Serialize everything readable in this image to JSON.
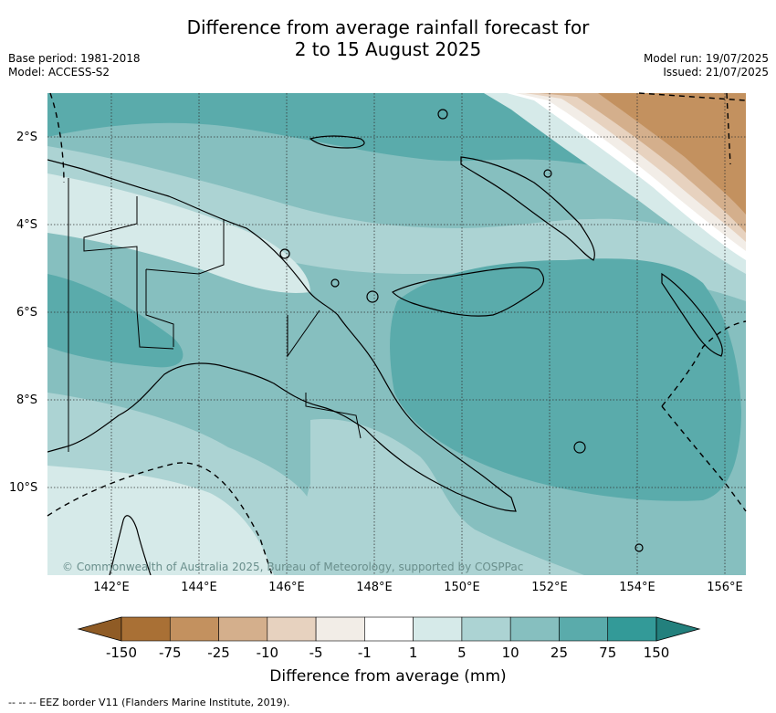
{
  "title_line1": "Difference from average rainfall forecast for",
  "title_line2": "2 to 15 August 2025",
  "base_period": "Base period: 1981-2018",
  "model": "Model: ACCESS-S2",
  "model_run": "Model run: 19/07/2025",
  "issued": "Issued: 21/07/2025",
  "copyright": "© Commonwealth of Australia 2025, Bureau of Meteorology, supported by COSPPac",
  "latitude_labels": [
    "2°S",
    "4°S",
    "6°S",
    "8°S",
    "10°S"
  ],
  "longitude_labels": [
    "142°E",
    "144°E",
    "146°E",
    "148°E",
    "150°E",
    "152°E",
    "154°E",
    "156°E"
  ],
  "colorbar": {
    "title": "Difference from average (mm)",
    "labels": [
      "-150",
      "-75",
      "-25",
      "-10",
      "-5",
      "-1",
      "1",
      "5",
      "10",
      "25",
      "75",
      "150"
    ],
    "colors": [
      "#a97035",
      "#c3915f",
      "#d4af8c",
      "#e7d2bf",
      "#f2ede7",
      "#ffffff",
      "#d6eae9",
      "#acd3d3",
      "#86bfbf",
      "#5aabab",
      "#339a98"
    ],
    "under_color": "#8f5b25",
    "over_color": "#23807d"
  },
  "legend_footnote": "--  --  -- EEZ border V11 (Flanders Marine Institute, 2019)."
}
